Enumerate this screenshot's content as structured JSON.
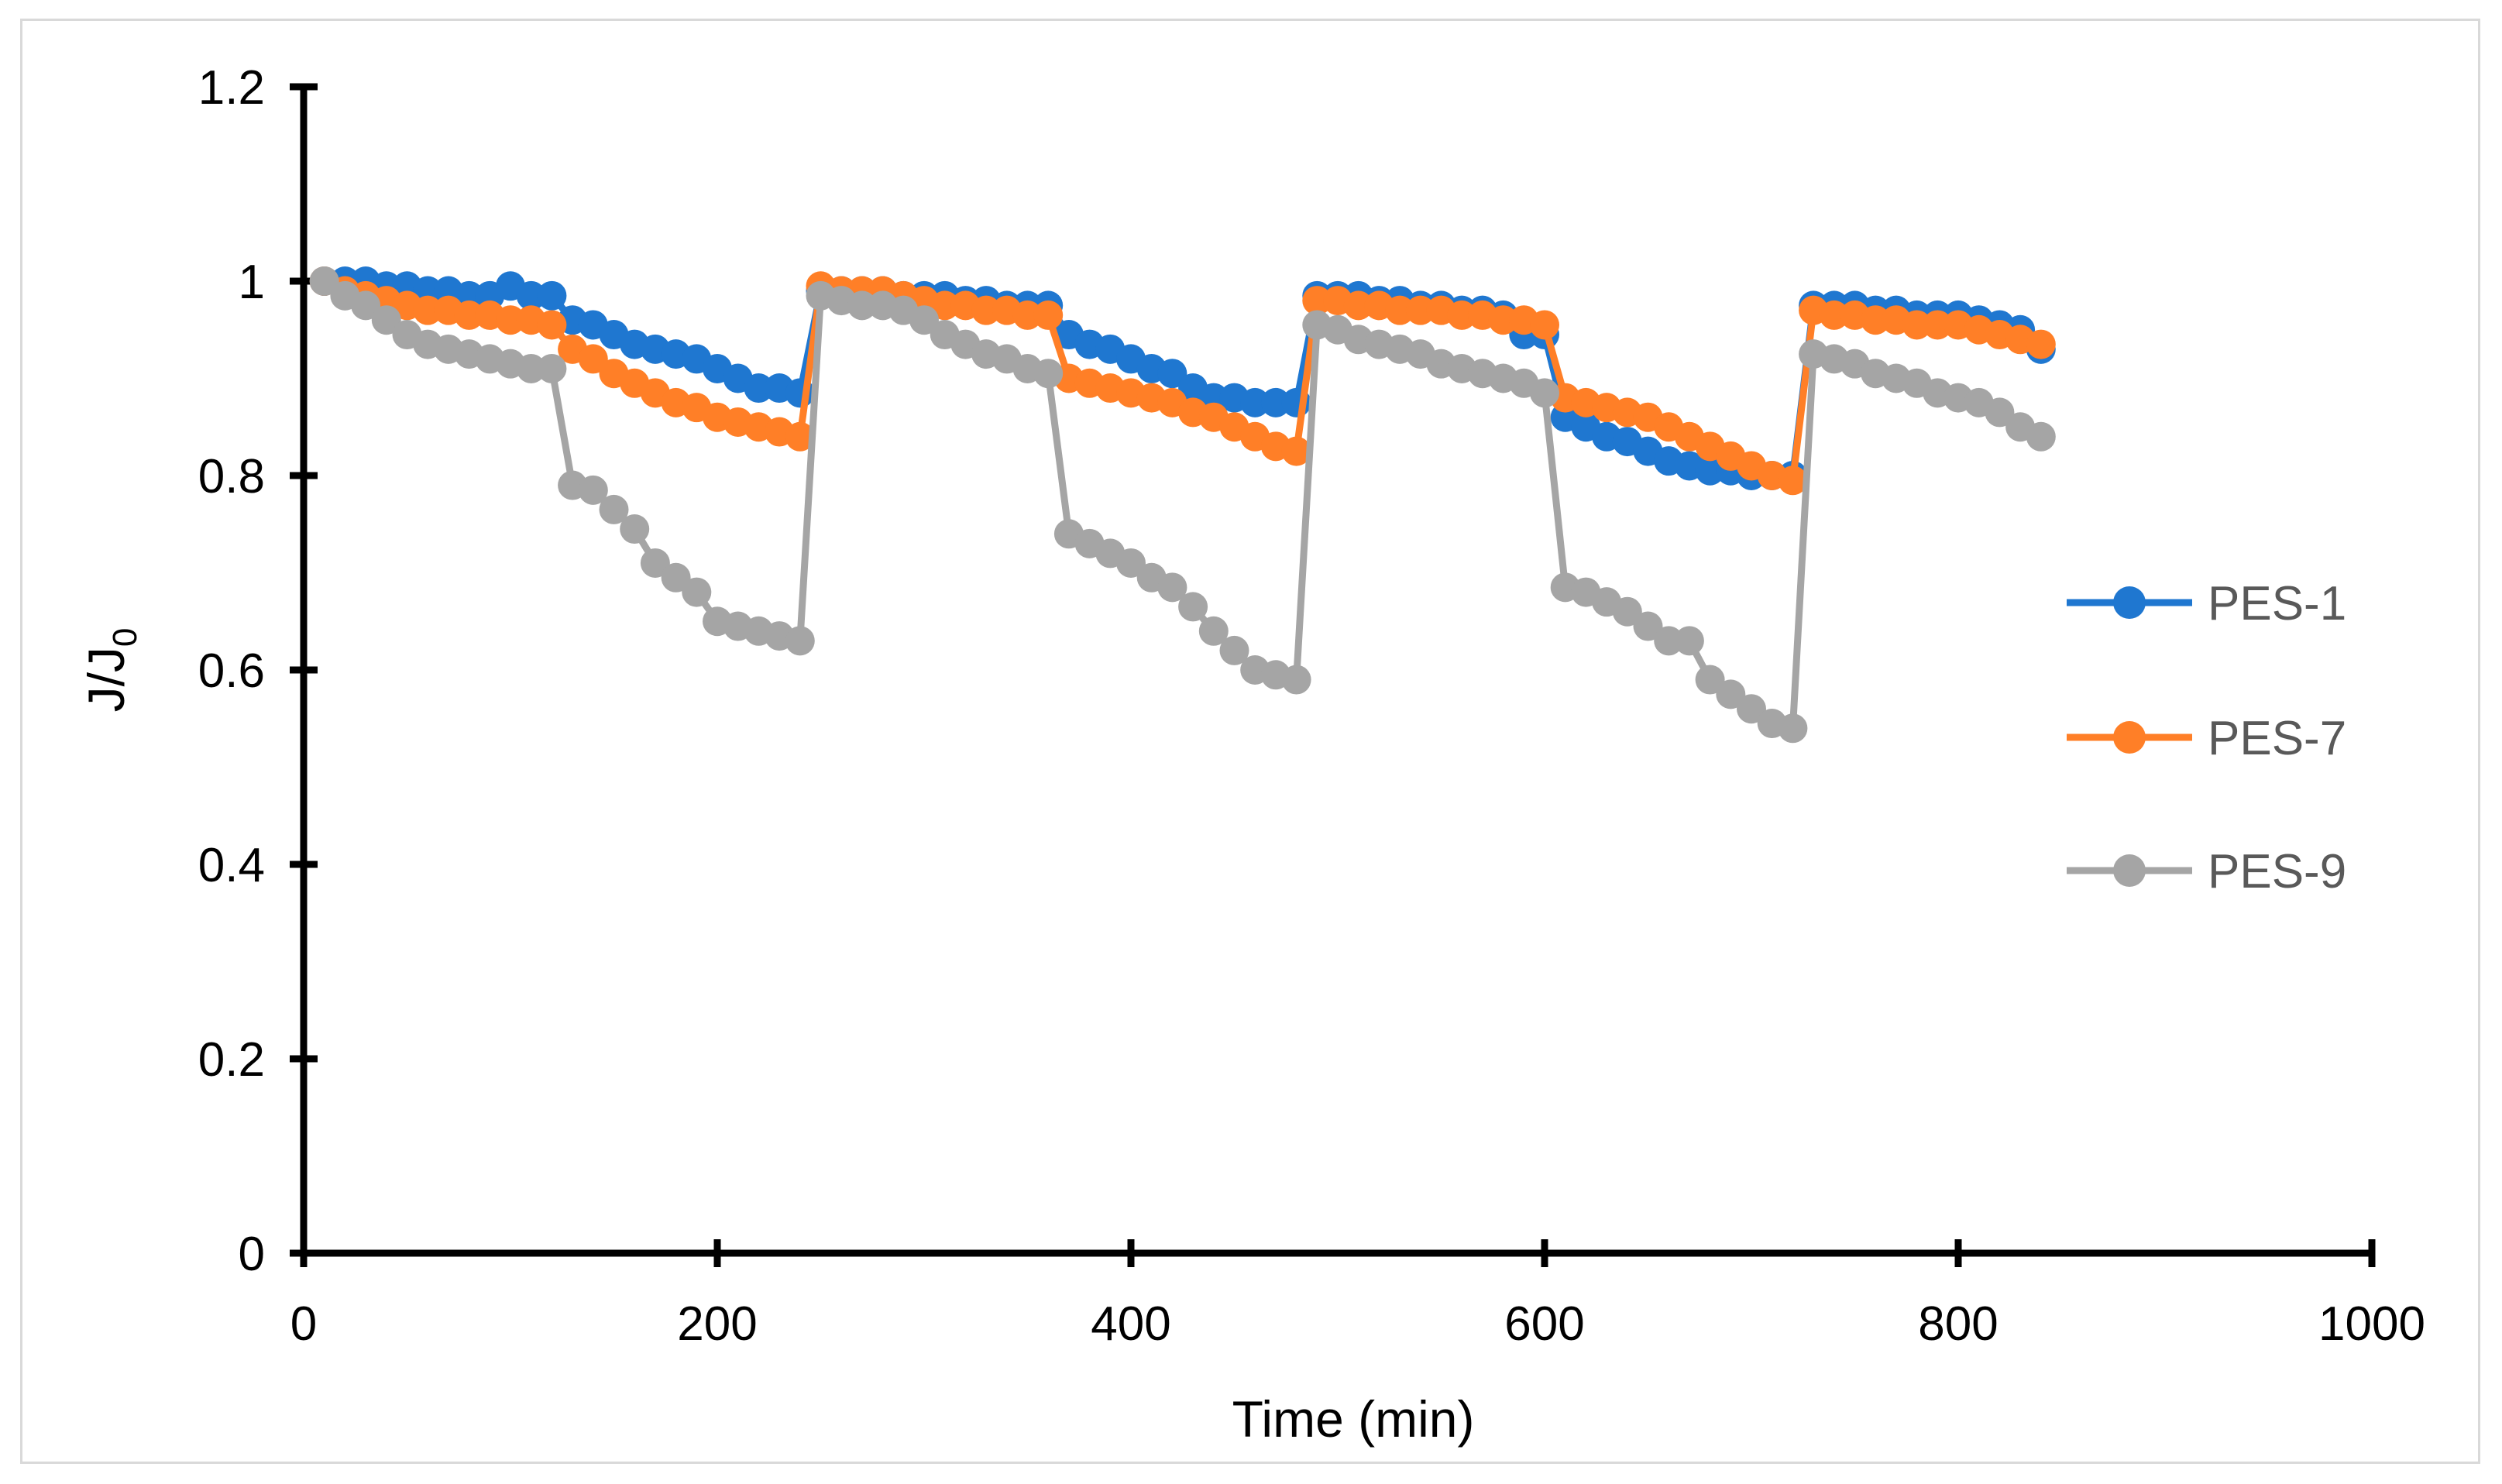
{
  "chart_data": {
    "type": "line",
    "title": "",
    "xlabel": "Time (min)",
    "ylabel": "J/J0",
    "ylabel_main": "J/J",
    "ylabel_sub": "0",
    "xlim": [
      0,
      1000
    ],
    "ylim": [
      0,
      1.2
    ],
    "xticks": [
      0,
      200,
      400,
      600,
      800,
      1000
    ],
    "yticks": [
      0,
      0.2,
      0.4,
      0.6,
      0.8,
      1.0
    ],
    "xtick_labels": [
      "0",
      "200",
      "400",
      "600",
      "800",
      "1000"
    ],
    "ytick_labels": [
      "0",
      "0.2",
      "0.4",
      "0.6",
      "0.8",
      "1",
      "1.2"
    ],
    "grid": false,
    "legend_position": "right",
    "series": [
      {
        "name": "PES-1",
        "color": "#1f77d0",
        "x": [
          10,
          20,
          30,
          40,
          50,
          60,
          70,
          80,
          90,
          100,
          110,
          120,
          130,
          140,
          150,
          160,
          170,
          180,
          190,
          200,
          210,
          220,
          230,
          240,
          250,
          260,
          270,
          280,
          290,
          300,
          310,
          320,
          330,
          340,
          350,
          360,
          370,
          380,
          390,
          400,
          410,
          420,
          430,
          440,
          450,
          460,
          470,
          480,
          490,
          500,
          510,
          520,
          530,
          540,
          550,
          560,
          570,
          580,
          590,
          600,
          610,
          620,
          630,
          640,
          650,
          660,
          670,
          680,
          690,
          700,
          710,
          720,
          730,
          740,
          750,
          760,
          770,
          780,
          790,
          800,
          810,
          820,
          830,
          840
        ],
        "y": [
          1.0,
          1.0,
          1.0,
          0.995,
          0.995,
          0.99,
          0.99,
          0.985,
          0.985,
          0.995,
          0.985,
          0.985,
          0.96,
          0.955,
          0.945,
          0.935,
          0.93,
          0.925,
          0.92,
          0.91,
          0.9,
          0.89,
          0.89,
          0.885,
          0.99,
          0.99,
          0.99,
          0.99,
          0.985,
          0.985,
          0.985,
          0.98,
          0.98,
          0.975,
          0.975,
          0.975,
          0.945,
          0.935,
          0.93,
          0.92,
          0.91,
          0.905,
          0.89,
          0.88,
          0.88,
          0.875,
          0.875,
          0.875,
          0.985,
          0.985,
          0.985,
          0.98,
          0.98,
          0.975,
          0.975,
          0.97,
          0.97,
          0.965,
          0.945,
          0.945,
          0.86,
          0.85,
          0.84,
          0.835,
          0.825,
          0.815,
          0.81,
          0.805,
          0.805,
          0.8,
          0.8,
          0.8,
          0.975,
          0.975,
          0.975,
          0.97,
          0.97,
          0.965,
          0.965,
          0.965,
          0.96,
          0.955,
          0.95,
          0.93
        ]
      },
      {
        "name": "PES-7",
        "color": "#ff7f27",
        "x": [
          10,
          20,
          30,
          40,
          50,
          60,
          70,
          80,
          90,
          100,
          110,
          120,
          130,
          140,
          150,
          160,
          170,
          180,
          190,
          200,
          210,
          220,
          230,
          240,
          250,
          260,
          270,
          280,
          290,
          300,
          310,
          320,
          330,
          340,
          350,
          360,
          370,
          380,
          390,
          400,
          410,
          420,
          430,
          440,
          450,
          460,
          470,
          480,
          490,
          500,
          510,
          520,
          530,
          540,
          550,
          560,
          570,
          580,
          590,
          600,
          610,
          620,
          630,
          640,
          650,
          660,
          670,
          680,
          690,
          700,
          710,
          720,
          730,
          740,
          750,
          760,
          770,
          780,
          790,
          800,
          810,
          820,
          830,
          840
        ],
        "y": [
          1.0,
          0.99,
          0.985,
          0.98,
          0.975,
          0.97,
          0.97,
          0.965,
          0.965,
          0.96,
          0.96,
          0.955,
          0.93,
          0.92,
          0.905,
          0.895,
          0.885,
          0.875,
          0.87,
          0.86,
          0.855,
          0.85,
          0.845,
          0.84,
          0.995,
          0.99,
          0.99,
          0.99,
          0.985,
          0.98,
          0.975,
          0.975,
          0.97,
          0.97,
          0.965,
          0.965,
          0.9,
          0.895,
          0.89,
          0.885,
          0.88,
          0.875,
          0.865,
          0.86,
          0.85,
          0.84,
          0.83,
          0.825,
          0.98,
          0.98,
          0.975,
          0.975,
          0.97,
          0.97,
          0.97,
          0.965,
          0.965,
          0.96,
          0.96,
          0.955,
          0.88,
          0.875,
          0.87,
          0.865,
          0.86,
          0.85,
          0.84,
          0.83,
          0.82,
          0.81,
          0.8,
          0.795,
          0.97,
          0.965,
          0.965,
          0.96,
          0.96,
          0.955,
          0.955,
          0.955,
          0.95,
          0.945,
          0.94,
          0.935
        ]
      },
      {
        "name": "PES-9",
        "color": "#a5a5a5",
        "x": [
          10,
          20,
          30,
          40,
          50,
          60,
          70,
          80,
          90,
          100,
          110,
          120,
          130,
          140,
          150,
          160,
          170,
          180,
          190,
          200,
          210,
          220,
          230,
          240,
          250,
          260,
          270,
          280,
          290,
          300,
          310,
          320,
          330,
          340,
          350,
          360,
          370,
          380,
          390,
          400,
          410,
          420,
          430,
          440,
          450,
          460,
          470,
          480,
          490,
          500,
          510,
          520,
          530,
          540,
          550,
          560,
          570,
          580,
          590,
          600,
          610,
          620,
          630,
          640,
          650,
          660,
          670,
          680,
          690,
          700,
          710,
          720,
          730,
          740,
          750,
          760,
          770,
          780,
          790,
          800,
          810,
          820,
          830,
          840
        ],
        "y": [
          1.0,
          0.985,
          0.975,
          0.96,
          0.945,
          0.935,
          0.93,
          0.925,
          0.92,
          0.915,
          0.91,
          0.91,
          0.79,
          0.785,
          0.765,
          0.745,
          0.71,
          0.695,
          0.68,
          0.65,
          0.645,
          0.64,
          0.635,
          0.63,
          0.985,
          0.98,
          0.975,
          0.975,
          0.97,
          0.96,
          0.945,
          0.935,
          0.925,
          0.92,
          0.91,
          0.905,
          0.74,
          0.73,
          0.72,
          0.71,
          0.695,
          0.685,
          0.665,
          0.64,
          0.62,
          0.6,
          0.595,
          0.59,
          0.955,
          0.95,
          0.94,
          0.935,
          0.93,
          0.925,
          0.915,
          0.91,
          0.905,
          0.9,
          0.895,
          0.885,
          0.685,
          0.68,
          0.67,
          0.66,
          0.645,
          0.63,
          0.63,
          0.59,
          0.575,
          0.56,
          0.545,
          0.54,
          0.925,
          0.92,
          0.915,
          0.905,
          0.9,
          0.895,
          0.885,
          0.88,
          0.875,
          0.865,
          0.85,
          0.84
        ]
      }
    ]
  }
}
